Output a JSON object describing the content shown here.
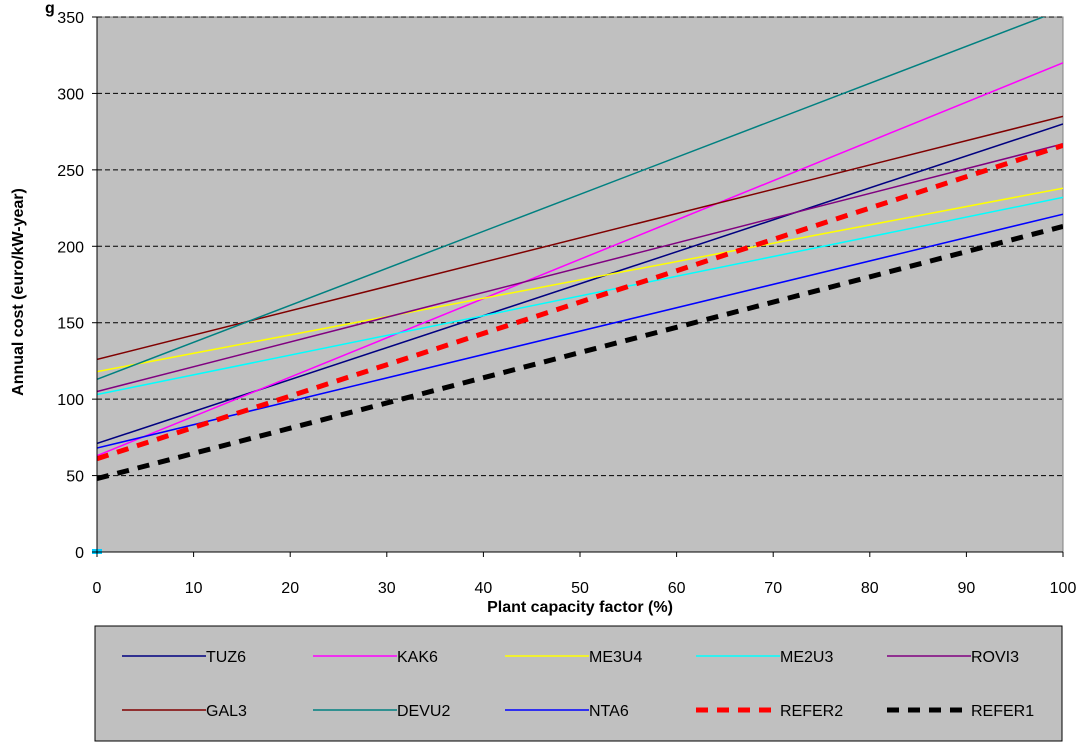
{
  "chart_data": {
    "type": "line",
    "title": "g",
    "xlabel": "Plant capacity factor (%)",
    "ylabel": "Annual cost (euro/kW-year)",
    "xlim": [
      0,
      100
    ],
    "ylim": [
      0,
      350
    ],
    "x_ticks": [
      0,
      10,
      20,
      30,
      40,
      50,
      60,
      70,
      80,
      90,
      100
    ],
    "y_ticks": [
      0,
      50,
      100,
      150,
      200,
      250,
      300,
      350
    ],
    "grid": "horizontal-dashed",
    "legend_position": "bottom",
    "plot_background": "#C0C0C0",
    "series": [
      {
        "name": "TUZ6",
        "color": "#000080",
        "dash": "solid",
        "x": [
          0,
          100
        ],
        "y": [
          71,
          280
        ]
      },
      {
        "name": "KAK6",
        "color": "#FF00FF",
        "dash": "solid",
        "x": [
          0,
          100
        ],
        "y": [
          63,
          320
        ]
      },
      {
        "name": "ME3U4",
        "color": "#FFFF00",
        "dash": "solid",
        "x": [
          0,
          100
        ],
        "y": [
          118,
          238
        ]
      },
      {
        "name": "ME2U3",
        "color": "#00FFFF",
        "dash": "solid",
        "x": [
          0,
          100
        ],
        "y": [
          103,
          232
        ]
      },
      {
        "name": "ROVI3",
        "color": "#800080",
        "dash": "solid",
        "x": [
          0,
          100
        ],
        "y": [
          105,
          267
        ]
      },
      {
        "name": "GAL3",
        "color": "#800000",
        "dash": "solid",
        "x": [
          0,
          100
        ],
        "y": [
          126,
          285
        ]
      },
      {
        "name": "DEVU2",
        "color": "#008080",
        "dash": "solid",
        "x": [
          0,
          100
        ],
        "y": [
          113,
          355
        ]
      },
      {
        "name": "NTA6",
        "color": "#0000FF",
        "dash": "solid",
        "x": [
          0,
          100
        ],
        "y": [
          68,
          221
        ]
      },
      {
        "name": "REFER2",
        "color": "#FF0000",
        "dash": "dashed",
        "x": [
          0,
          100
        ],
        "y": [
          61,
          266
        ]
      },
      {
        "name": "REFER1",
        "color": "#000000",
        "dash": "dashed",
        "x": [
          0,
          100
        ],
        "y": [
          48,
          213
        ]
      }
    ]
  }
}
